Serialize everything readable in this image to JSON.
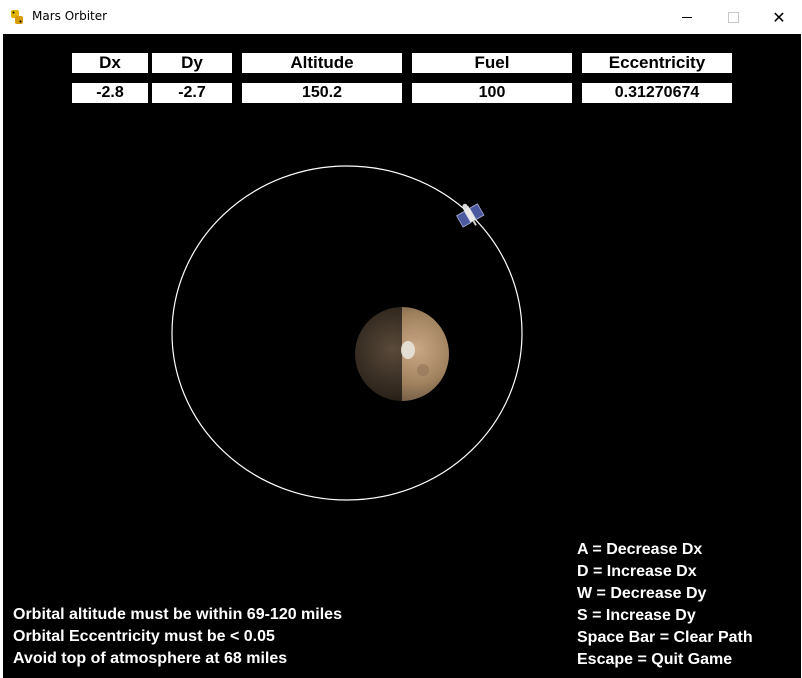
{
  "window": {
    "title": "Mars Orbiter",
    "app_icon": "python-snake-icon",
    "minimize_icon": "minimize-icon",
    "maximize_icon": "maximize-icon",
    "close_icon": "close-icon"
  },
  "hud": {
    "headers": {
      "dx": "Dx",
      "dy": "Dy",
      "altitude": "Altitude",
      "fuel": "Fuel",
      "eccentricity": "Eccentricity"
    },
    "values": {
      "dx": "-2.8",
      "dy": "-2.7",
      "altitude": "150.2",
      "fuel": "100",
      "eccentricity": "0.31270674"
    }
  },
  "instructions": [
    "Orbital altitude must be within 69-120 miles",
    "Orbital Eccentricity must be < 0.05",
    "Avoid top of atmosphere at 68 miles"
  ],
  "controls": [
    "A = Decrease Dx",
    "D = Increase Dx",
    "W = Decrease Dy",
    "S = Increase Dy",
    "Space Bar = Clear Path",
    "Escape = Quit Game"
  ],
  "colors": {
    "background": "#000000",
    "hud_box": "#ffffff",
    "orbit_path": "#ffffff",
    "planet_lit": "#a8896a",
    "planet_dark": "#3a2e24"
  },
  "scene": {
    "planet": "mars-planet",
    "satellite": "satellite-icon"
  }
}
